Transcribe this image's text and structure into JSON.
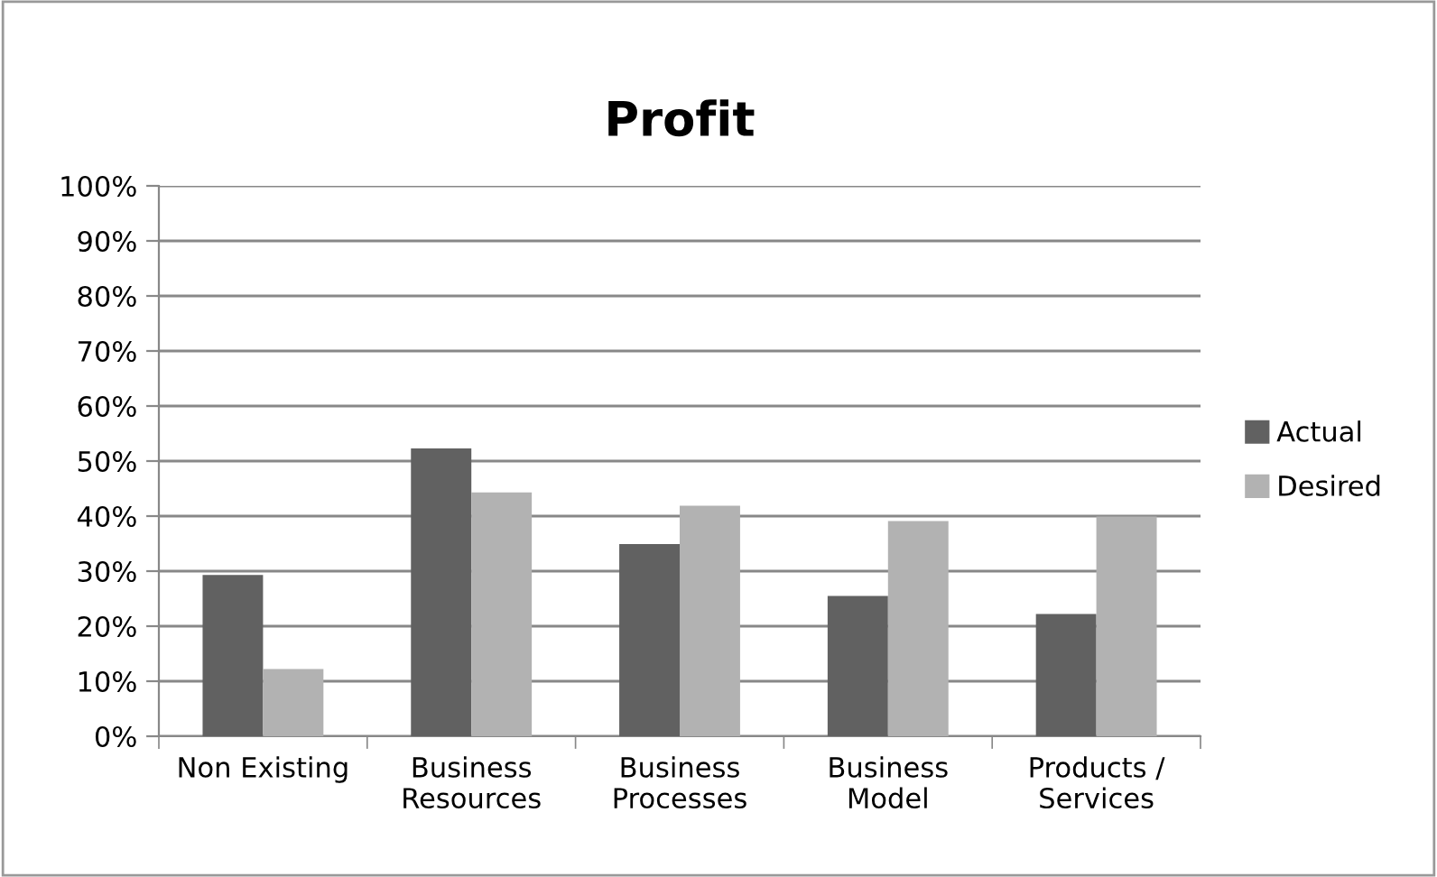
{
  "chart_data": {
    "type": "bar",
    "title": "Profit",
    "categories": [
      "Non Existing",
      "Business\nResources",
      "Business\nProcesses",
      "Business\nModel",
      "Products /\nServices"
    ],
    "series": [
      {
        "name": "Actual",
        "color": "#616161",
        "values": [
          29.3,
          52.3,
          34.9,
          25.5,
          22.2
        ]
      },
      {
        "name": "Desired",
        "color": "#b2b2b2",
        "values": [
          12.2,
          44.3,
          41.9,
          39.1,
          39.9
        ]
      }
    ],
    "ylim": [
      0,
      100
    ],
    "yticks": [
      {
        "value": 0,
        "label": "0%"
      },
      {
        "value": 10,
        "label": "10%"
      },
      {
        "value": 20,
        "label": "20%"
      },
      {
        "value": 30,
        "label": "30%"
      },
      {
        "value": 40,
        "label": "40%"
      },
      {
        "value": 50,
        "label": "50%"
      },
      {
        "value": 60,
        "label": "60%"
      },
      {
        "value": 70,
        "label": "70%"
      },
      {
        "value": 80,
        "label": "80%"
      },
      {
        "value": 90,
        "label": "90%"
      },
      {
        "value": 100,
        "label": "100%"
      }
    ],
    "grid": "y",
    "legend": "right"
  }
}
